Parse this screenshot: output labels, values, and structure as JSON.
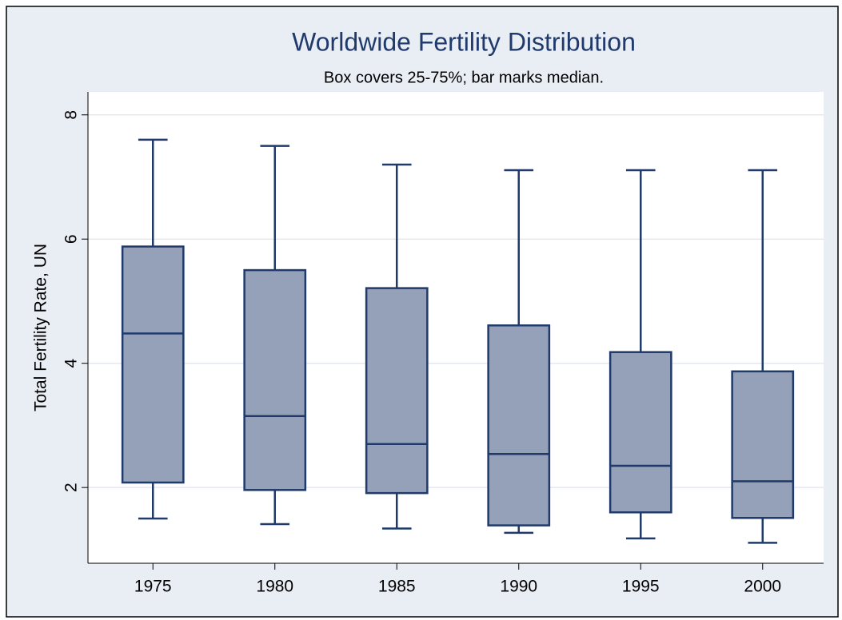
{
  "chart_data": {
    "type": "box",
    "title": "Worldwide Fertility Distribution",
    "subtitle": "Box covers 25-75%; bar marks median.",
    "y_label": "Total Fertility Rate, UN",
    "categories": [
      "1975",
      "1980",
      "1985",
      "1990",
      "1995",
      "2000"
    ],
    "whisker_high": [
      7.6,
      7.5,
      7.2,
      7.11,
      7.11,
      7.11
    ],
    "q3": [
      5.88,
      5.5,
      5.21,
      4.61,
      4.18,
      3.87
    ],
    "median": [
      4.48,
      3.15,
      2.7,
      2.54,
      2.35,
      2.1
    ],
    "q1": [
      2.08,
      1.96,
      1.91,
      1.39,
      1.6,
      1.51
    ],
    "whisker_low": [
      1.5,
      1.41,
      1.34,
      1.27,
      1.18,
      1.11
    ],
    "color": "#94a1b8",
    "edge_color": "#1f3a6b",
    "ylim": [
      0.78,
      8.37
    ],
    "yticks": [
      2,
      4,
      6,
      8
    ],
    "grid": true
  }
}
